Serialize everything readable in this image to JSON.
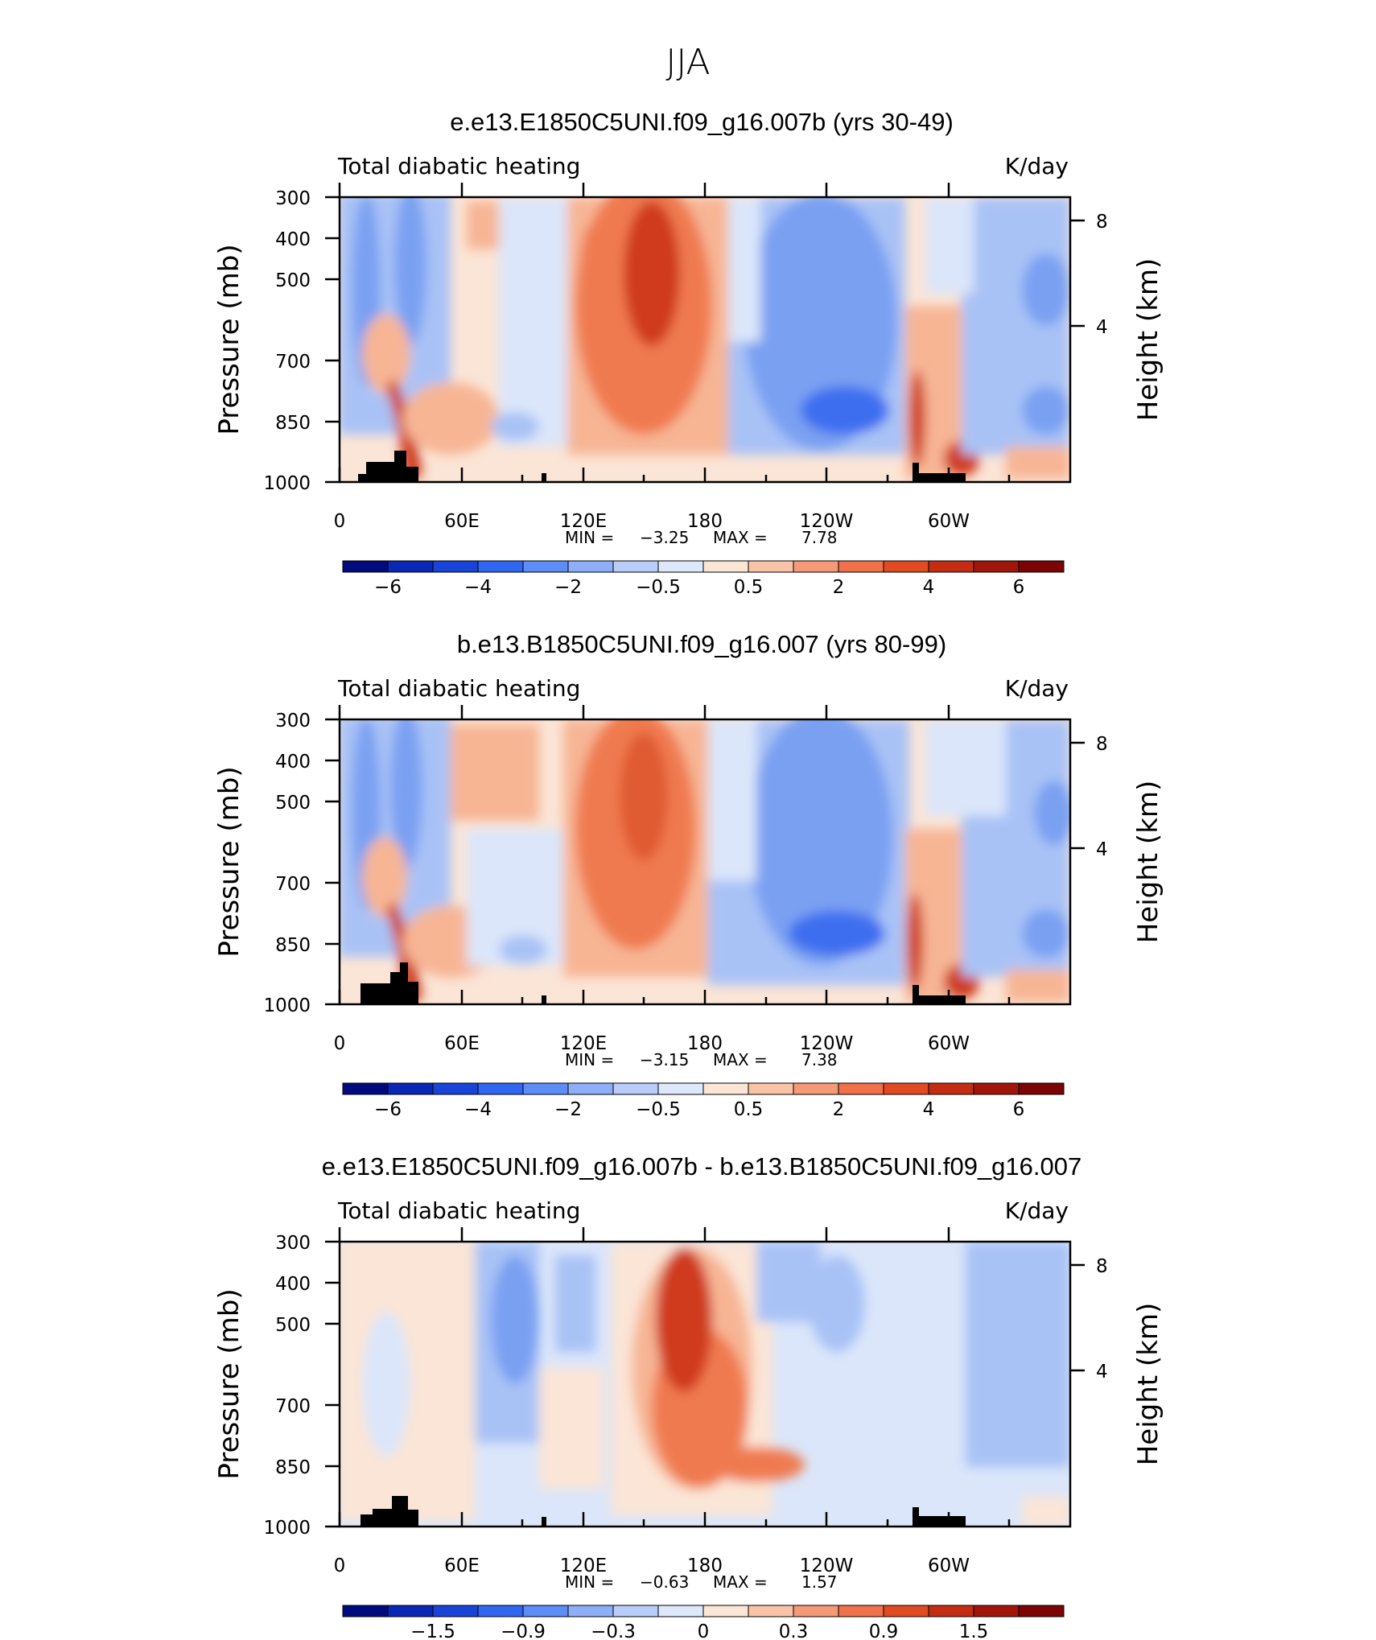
{
  "figure_title": "JJA",
  "chart_data": [
    {
      "type": "heatmap",
      "title": "e.e13.E1850C5UNI.f09_g16.007b (yrs 30-49)",
      "left_string": "Total diabatic heating",
      "right_string": "K/day",
      "ylabel": "Pressure (mb)",
      "ylabel_right": "Height (km)",
      "x_ticks": [
        "0",
        "60E",
        "120E",
        "180",
        "120W",
        "60W"
      ],
      "y_ticks": [
        "300",
        "400",
        "500",
        "700",
        "850",
        "1000"
      ],
      "y_right_ticks": [
        "8",
        "4"
      ],
      "ylim": [
        1000,
        300
      ],
      "min_label": "MIN =",
      "min_value": "−3.25",
      "max_label": "MAX =",
      "max_value": "7.78",
      "colorbar_levels": [
        "−6",
        "−4",
        "−2",
        "−0.5",
        "0.5",
        "2",
        "4",
        "6"
      ]
    },
    {
      "type": "heatmap",
      "title": "b.e13.B1850C5UNI.f09_g16.007 (yrs 80-99)",
      "left_string": "Total diabatic heating",
      "right_string": "K/day",
      "ylabel": "Pressure (mb)",
      "ylabel_right": "Height (km)",
      "x_ticks": [
        "0",
        "60E",
        "120E",
        "180",
        "120W",
        "60W"
      ],
      "y_ticks": [
        "300",
        "400",
        "500",
        "700",
        "850",
        "1000"
      ],
      "y_right_ticks": [
        "8",
        "4"
      ],
      "ylim": [
        1000,
        300
      ],
      "min_label": "MIN =",
      "min_value": "−3.15",
      "max_label": "MAX =",
      "max_value": "7.38",
      "colorbar_levels": [
        "−6",
        "−4",
        "−2",
        "−0.5",
        "0.5",
        "2",
        "4",
        "6"
      ]
    },
    {
      "type": "heatmap",
      "title": "e.e13.E1850C5UNI.f09_g16.007b - b.e13.B1850C5UNI.f09_g16.007",
      "left_string": "Total diabatic heating",
      "right_string": "K/day",
      "ylabel": "Pressure (mb)",
      "ylabel_right": "Height (km)",
      "x_ticks": [
        "0",
        "60E",
        "120E",
        "180",
        "120W",
        "60W"
      ],
      "y_ticks": [
        "300",
        "400",
        "500",
        "700",
        "850",
        "1000"
      ],
      "y_right_ticks": [
        "8",
        "4"
      ],
      "ylim": [
        1000,
        300
      ],
      "min_label": "MIN =",
      "min_value": "−0.63",
      "max_label": "MAX =",
      "max_value": "1.57",
      "colorbar_levels": [
        "−1.5",
        "−0.9",
        "−0.3",
        "0",
        "0.3",
        "0.9",
        "1.5"
      ]
    }
  ],
  "colorbar_colors": [
    "#000c7e",
    "#0a27b5",
    "#1845d8",
    "#2f67f3",
    "#5d8df6",
    "#8eaef8",
    "#b8cdf9",
    "#dde8fb",
    "#fbe6d5",
    "#f9c3a8",
    "#f59a77",
    "#f1714a",
    "#e24a22",
    "#c52d12",
    "#a1160b",
    "#7d0404"
  ],
  "colors": {
    "bg_blue_light": "#dbe6fa",
    "blue_mid": "#a9c2f6",
    "blue_strong": "#7aa0f2",
    "blue_deep": "#3d6ef0",
    "red_light": "#fbe5d6",
    "red_mid": "#f7b594",
    "red_strong": "#f07a50",
    "red_deep": "#cf3a1a",
    "topography": "#000000"
  }
}
